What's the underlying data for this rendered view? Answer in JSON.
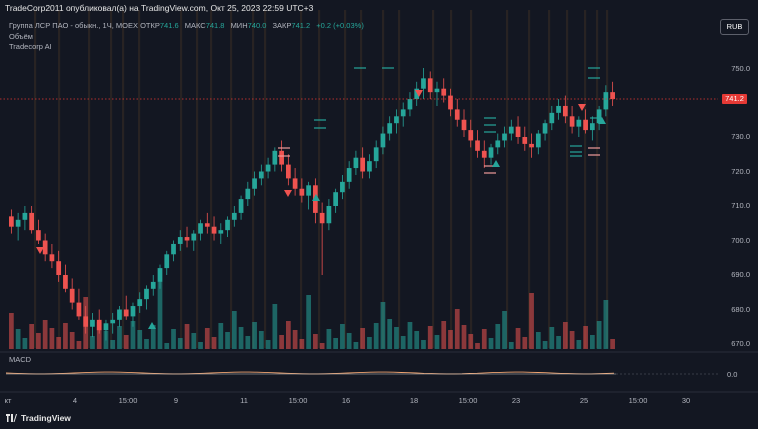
{
  "header": {
    "published_line": "TradeCorp2011 опубликовал(а) на TradingView.com, Окт 25, 2023 22:59 UTC+3",
    "symbol": "Группа ЛСР ПАО - обыкн., 1Ч, MOEX",
    "ohlc": [
      {
        "label": "ОТКР",
        "value": "741.6"
      },
      {
        "label": "МАКС",
        "value": "741.8"
      },
      {
        "label": "МИН",
        "value": "740.0"
      },
      {
        "label": "ЗАКР",
        "value": "741.2"
      }
    ],
    "change": "+0.2 (+0.03%)",
    "indicator_1": "Объём",
    "indicator_2": "Tradecorp AI",
    "currency_button": "RUB"
  },
  "price_axis": {
    "labels": [
      "750.0",
      "740.0",
      "730.0",
      "720.0",
      "710.0",
      "700.0",
      "690.0",
      "680.0",
      "670.0"
    ],
    "last_price": "741.2"
  },
  "time_axis": {
    "labels": [
      "кт",
      "4",
      "15:00",
      "9",
      "11",
      "15:00",
      "16",
      "18",
      "15:00",
      "23",
      "25",
      "15:00",
      "30"
    ]
  },
  "macd": {
    "label": "MACD",
    "value": "0.0"
  },
  "footer": {
    "brand": "TradingView"
  },
  "colors": {
    "up": "#26a69a",
    "down": "#ef5350",
    "bg": "#131722",
    "last_price": "#e53935"
  },
  "chart_data": {
    "type": "candlestick",
    "title": "Группа ЛСР ПАО - обыкн., 1Ч, MOEX",
    "ylim": [
      667,
      752
    ],
    "last_price": 741.2,
    "ohlc_hourly_approx": [
      [
        707,
        709,
        702,
        704
      ],
      [
        704,
        708,
        700,
        706
      ],
      [
        706,
        710,
        703,
        708
      ],
      [
        708,
        710,
        702,
        703
      ],
      [
        703,
        706,
        699,
        700
      ],
      [
        700,
        702,
        694,
        696
      ],
      [
        696,
        699,
        692,
        694
      ],
      [
        694,
        697,
        688,
        690
      ],
      [
        690,
        693,
        685,
        686
      ],
      [
        686,
        689,
        680,
        682
      ],
      [
        682,
        686,
        677,
        678
      ],
      [
        678,
        681,
        673,
        675
      ],
      [
        675,
        679,
        672,
        677
      ],
      [
        677,
        680,
        673,
        674
      ],
      [
        674,
        677,
        671,
        676
      ],
      [
        676,
        679,
        673,
        677
      ],
      [
        677,
        681,
        675,
        680
      ],
      [
        680,
        684,
        677,
        678
      ],
      [
        678,
        682,
        675,
        681
      ],
      [
        681,
        685,
        679,
        683
      ],
      [
        683,
        687,
        680,
        686
      ],
      [
        686,
        690,
        684,
        688
      ],
      [
        688,
        693,
        686,
        692
      ],
      [
        692,
        697,
        690,
        696
      ],
      [
        696,
        700,
        694,
        699
      ],
      [
        699,
        703,
        697,
        701
      ],
      [
        701,
        704,
        698,
        700
      ],
      [
        700,
        703,
        697,
        702
      ],
      [
        702,
        706,
        700,
        705
      ],
      [
        705,
        708,
        702,
        704
      ],
      [
        704,
        707,
        700,
        702
      ],
      [
        702,
        705,
        699,
        703
      ],
      [
        703,
        707,
        701,
        706
      ],
      [
        706,
        710,
        704,
        708
      ],
      [
        708,
        713,
        706,
        712
      ],
      [
        712,
        717,
        710,
        715
      ],
      [
        715,
        720,
        713,
        718
      ],
      [
        718,
        722,
        716,
        720
      ],
      [
        720,
        724,
        718,
        722
      ],
      [
        722,
        727,
        720,
        726
      ],
      [
        726,
        729,
        720,
        722
      ],
      [
        722,
        725,
        716,
        718
      ],
      [
        718,
        721,
        713,
        715
      ],
      [
        715,
        718,
        711,
        713
      ],
      [
        713,
        717,
        709,
        716
      ],
      [
        716,
        718,
        705,
        708
      ],
      [
        708,
        711,
        690,
        705
      ],
      [
        705,
        712,
        703,
        710
      ],
      [
        710,
        715,
        708,
        714
      ],
      [
        714,
        719,
        712,
        717
      ],
      [
        717,
        723,
        715,
        721
      ],
      [
        721,
        726,
        719,
        724
      ],
      [
        724,
        727,
        718,
        720
      ],
      [
        720,
        725,
        718,
        723
      ],
      [
        723,
        729,
        721,
        727
      ],
      [
        727,
        733,
        725,
        731
      ],
      [
        731,
        736,
        729,
        734
      ],
      [
        734,
        738,
        731,
        736
      ],
      [
        736,
        740,
        733,
        738
      ],
      [
        738,
        743,
        736,
        741
      ],
      [
        741,
        746,
        739,
        744
      ],
      [
        744,
        750,
        741,
        747
      ],
      [
        747,
        749,
        741,
        743
      ],
      [
        743,
        746,
        739,
        744
      ],
      [
        744,
        747,
        740,
        742
      ],
      [
        742,
        744,
        736,
        738
      ],
      [
        738,
        741,
        733,
        735
      ],
      [
        735,
        738,
        730,
        732
      ],
      [
        732,
        735,
        727,
        729
      ],
      [
        729,
        732,
        724,
        726
      ],
      [
        726,
        729,
        721,
        724
      ],
      [
        724,
        728,
        722,
        727
      ],
      [
        727,
        731,
        725,
        729
      ],
      [
        729,
        733,
        727,
        731
      ],
      [
        731,
        735,
        729,
        733
      ],
      [
        733,
        736,
        728,
        730
      ],
      [
        730,
        733,
        726,
        728
      ],
      [
        728,
        731,
        724,
        727
      ],
      [
        727,
        732,
        725,
        731
      ],
      [
        731,
        735,
        729,
        734
      ],
      [
        734,
        739,
        732,
        737
      ],
      [
        737,
        741,
        735,
        739
      ],
      [
        739,
        742,
        734,
        736
      ],
      [
        736,
        739,
        731,
        733
      ],
      [
        733,
        736,
        730,
        735
      ],
      [
        735,
        738,
        731,
        732
      ],
      [
        732,
        736,
        729,
        734
      ],
      [
        734,
        739,
        732,
        738
      ],
      [
        738,
        745,
        736,
        743
      ],
      [
        743,
        746,
        739,
        741
      ]
    ]
  }
}
